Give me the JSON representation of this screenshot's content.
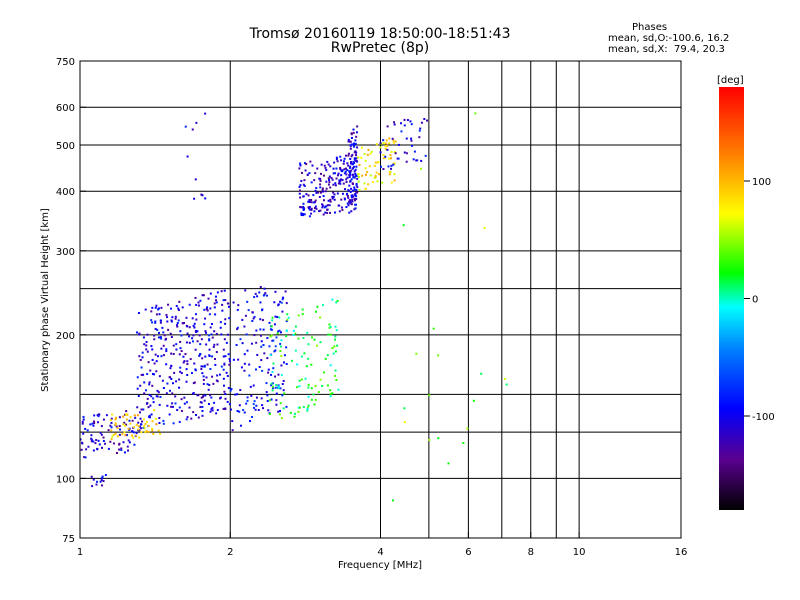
{
  "header": {
    "title_line1": "Tromsø 20160119 18:50:00-18:51:43",
    "title_line2": "RwPretec (8p)"
  },
  "stats": {
    "heading": "Phases",
    "line1": "mean, sd,O:-100.6, 16.2",
    "line2": "mean, sd,X:  79.4, 20.3"
  },
  "chart_data": {
    "type": "scatter",
    "title": "Tromsø 20160119 18:50:00-18:51:43",
    "subtitle": "RwPretec (8p)",
    "xlabel": "Frequency [MHz]",
    "ylabel": "Stationary phase Virtual Height [km]",
    "xscale": "log",
    "yscale": "log",
    "xlim": [
      1,
      16
    ],
    "ylim": [
      75,
      750
    ],
    "grid": true,
    "xticks": [
      1,
      2,
      4,
      6,
      8,
      10,
      16
    ],
    "xtick_labels": [
      "1",
      "2",
      "4",
      "6",
      "8",
      "10",
      "16"
    ],
    "xgrid_lines": [
      2,
      4,
      5,
      6,
      7,
      8,
      9,
      10
    ],
    "yticks": [
      75,
      100,
      200,
      300,
      400,
      500,
      600,
      750
    ],
    "ytick_labels": [
      "75",
      "100",
      "200",
      "300",
      "400",
      "500",
      "600",
      "750"
    ],
    "ygrid_lines": [
      100,
      125,
      150,
      200,
      250,
      300,
      400,
      500,
      600
    ],
    "colorbar": {
      "label": "[deg]",
      "range": [
        -180,
        180
      ],
      "ticks": [
        100,
        0,
        -100
      ],
      "tick_labels": [
        "100",
        "0",
        "-100"
      ]
    },
    "clusters": [
      {
        "name": "O-mode E/F1 low trace",
        "x_range": [
          1.0,
          1.3
        ],
        "y_range": [
          110,
          140
        ],
        "n": 90,
        "phase": -110
      },
      {
        "name": "low returns",
        "x_range": [
          1.05,
          1.15
        ],
        "y_range": [
          96,
          102
        ],
        "n": 12,
        "phase": -110
      },
      {
        "name": "O-mode F1 ramp",
        "x_range": [
          1.3,
          2.0
        ],
        "y_range": [
          125,
          250
        ],
        "n": 380,
        "phase": -105
      },
      {
        "name": "O-mode ramp upper",
        "x_range": [
          2.0,
          2.6
        ],
        "y_range": [
          125,
          270
        ],
        "n": 160,
        "phase": -95
      },
      {
        "name": "X-mode yellow low",
        "x_range": [
          1.15,
          1.45
        ],
        "y_range": [
          120,
          140
        ],
        "n": 55,
        "phase": 90
      },
      {
        "name": "mixed 2.4-3.3 MHz",
        "x_range": [
          2.4,
          3.3
        ],
        "y_range": [
          130,
          240
        ],
        "n": 120,
        "phase": 20
      },
      {
        "name": "F2 cusp blue",
        "x_range": [
          2.75,
          3.6
        ],
        "y_range": [
          350,
          480
        ],
        "n": 230,
        "phase": -110
      },
      {
        "name": "F2 vertical streak",
        "x_range": [
          3.45,
          3.6
        ],
        "y_range": [
          350,
          560
        ],
        "n": 80,
        "phase": -110
      },
      {
        "name": "F2 upper yellow-green",
        "x_range": [
          3.6,
          4.3
        ],
        "y_range": [
          400,
          520
        ],
        "n": 70,
        "phase": 80
      },
      {
        "name": "F2 upper blue",
        "x_range": [
          4.0,
          5.0
        ],
        "y_range": [
          440,
          580
        ],
        "n": 45,
        "phase": -100
      },
      {
        "name": "high sparse",
        "x_range": [
          1.6,
          1.8
        ],
        "y_range": [
          360,
          600
        ],
        "n": 10,
        "phase": -110
      },
      {
        "name": "scattered high-frequency",
        "x_range": [
          4.2,
          7.2
        ],
        "y_range": [
          80,
          660
        ],
        "n": 20,
        "phase": 40
      }
    ]
  }
}
